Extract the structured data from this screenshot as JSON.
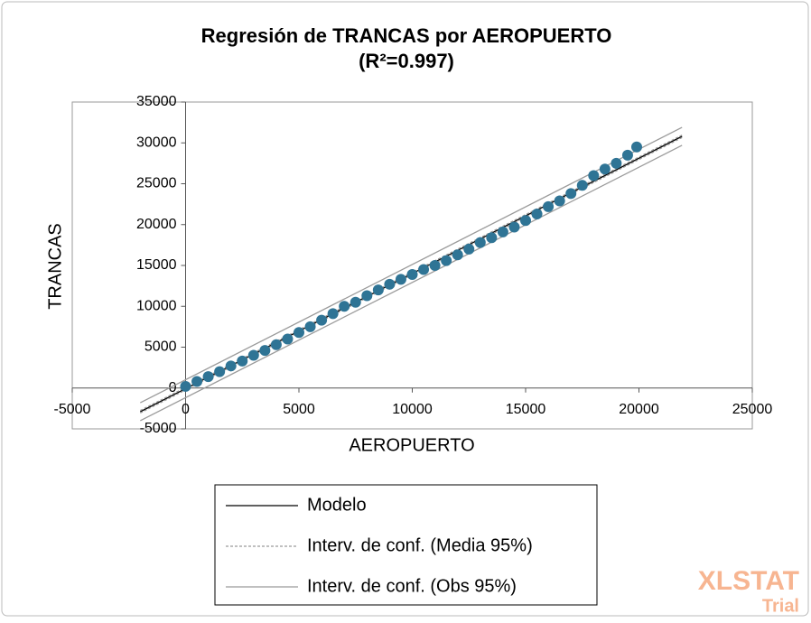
{
  "chart_data": {
    "type": "scatter",
    "title": "Regresión de TRANCAS por AEROPUERTO",
    "subtitle": "(R²=0.997)",
    "x_label": "AEROPUERTO",
    "y_label": "TRANCAS",
    "xlim": [
      -5000,
      25000
    ],
    "ylim": [
      -5000,
      35000
    ],
    "xticks": [
      -5000,
      0,
      5000,
      10000,
      15000,
      20000,
      25000
    ],
    "yticks": [
      -5000,
      0,
      5000,
      10000,
      15000,
      20000,
      25000,
      30000,
      35000
    ],
    "grid": false,
    "points": {
      "color": "#2f7495",
      "x": [
        0,
        500,
        1000,
        1500,
        2000,
        2500,
        3000,
        3500,
        4000,
        4500,
        5000,
        5500,
        6000,
        6500,
        7000,
        7500,
        8000,
        8500,
        9000,
        9500,
        10000,
        10500,
        11000,
        11500,
        12000,
        12500,
        13000,
        13500,
        14000,
        14500,
        15000,
        15500,
        16000,
        16500,
        17000,
        17500,
        18000,
        18500,
        19000,
        19500,
        19900
      ],
      "values": [
        200,
        800,
        1400,
        2000,
        2700,
        3300,
        4000,
        4600,
        5300,
        6000,
        6800,
        7500,
        8300,
        9100,
        10000,
        10500,
        11300,
        12000,
        12700,
        13300,
        13900,
        14500,
        15000,
        15600,
        16300,
        17000,
        17800,
        18400,
        19100,
        19700,
        20500,
        21300,
        22200,
        22900,
        23800,
        24800,
        26000,
        26800,
        27500,
        28500,
        29500
      ]
    },
    "series": [
      {
        "name": "Modelo",
        "color": "#000000",
        "dash": "none",
        "x": [
          -2000,
          21900
        ],
        "values": [
          -2900,
          30800
        ]
      },
      {
        "name": "Interv. de conf. (Media 95%)",
        "color": "#9a9a9a",
        "dash": "3,2",
        "x": [
          -2000,
          21900
        ],
        "lower": [
          -3050,
          30650
        ],
        "upper": [
          -2750,
          30950
        ]
      },
      {
        "name": "Interv. de conf. (Obs 95%)",
        "color": "#9a9a9a",
        "dash": "none",
        "x": [
          -2000,
          21900
        ],
        "lower": [
          -4000,
          29700
        ],
        "upper": [
          -1800,
          31900
        ]
      }
    ],
    "watermark": [
      "XLSTAT",
      "Trial"
    ]
  }
}
